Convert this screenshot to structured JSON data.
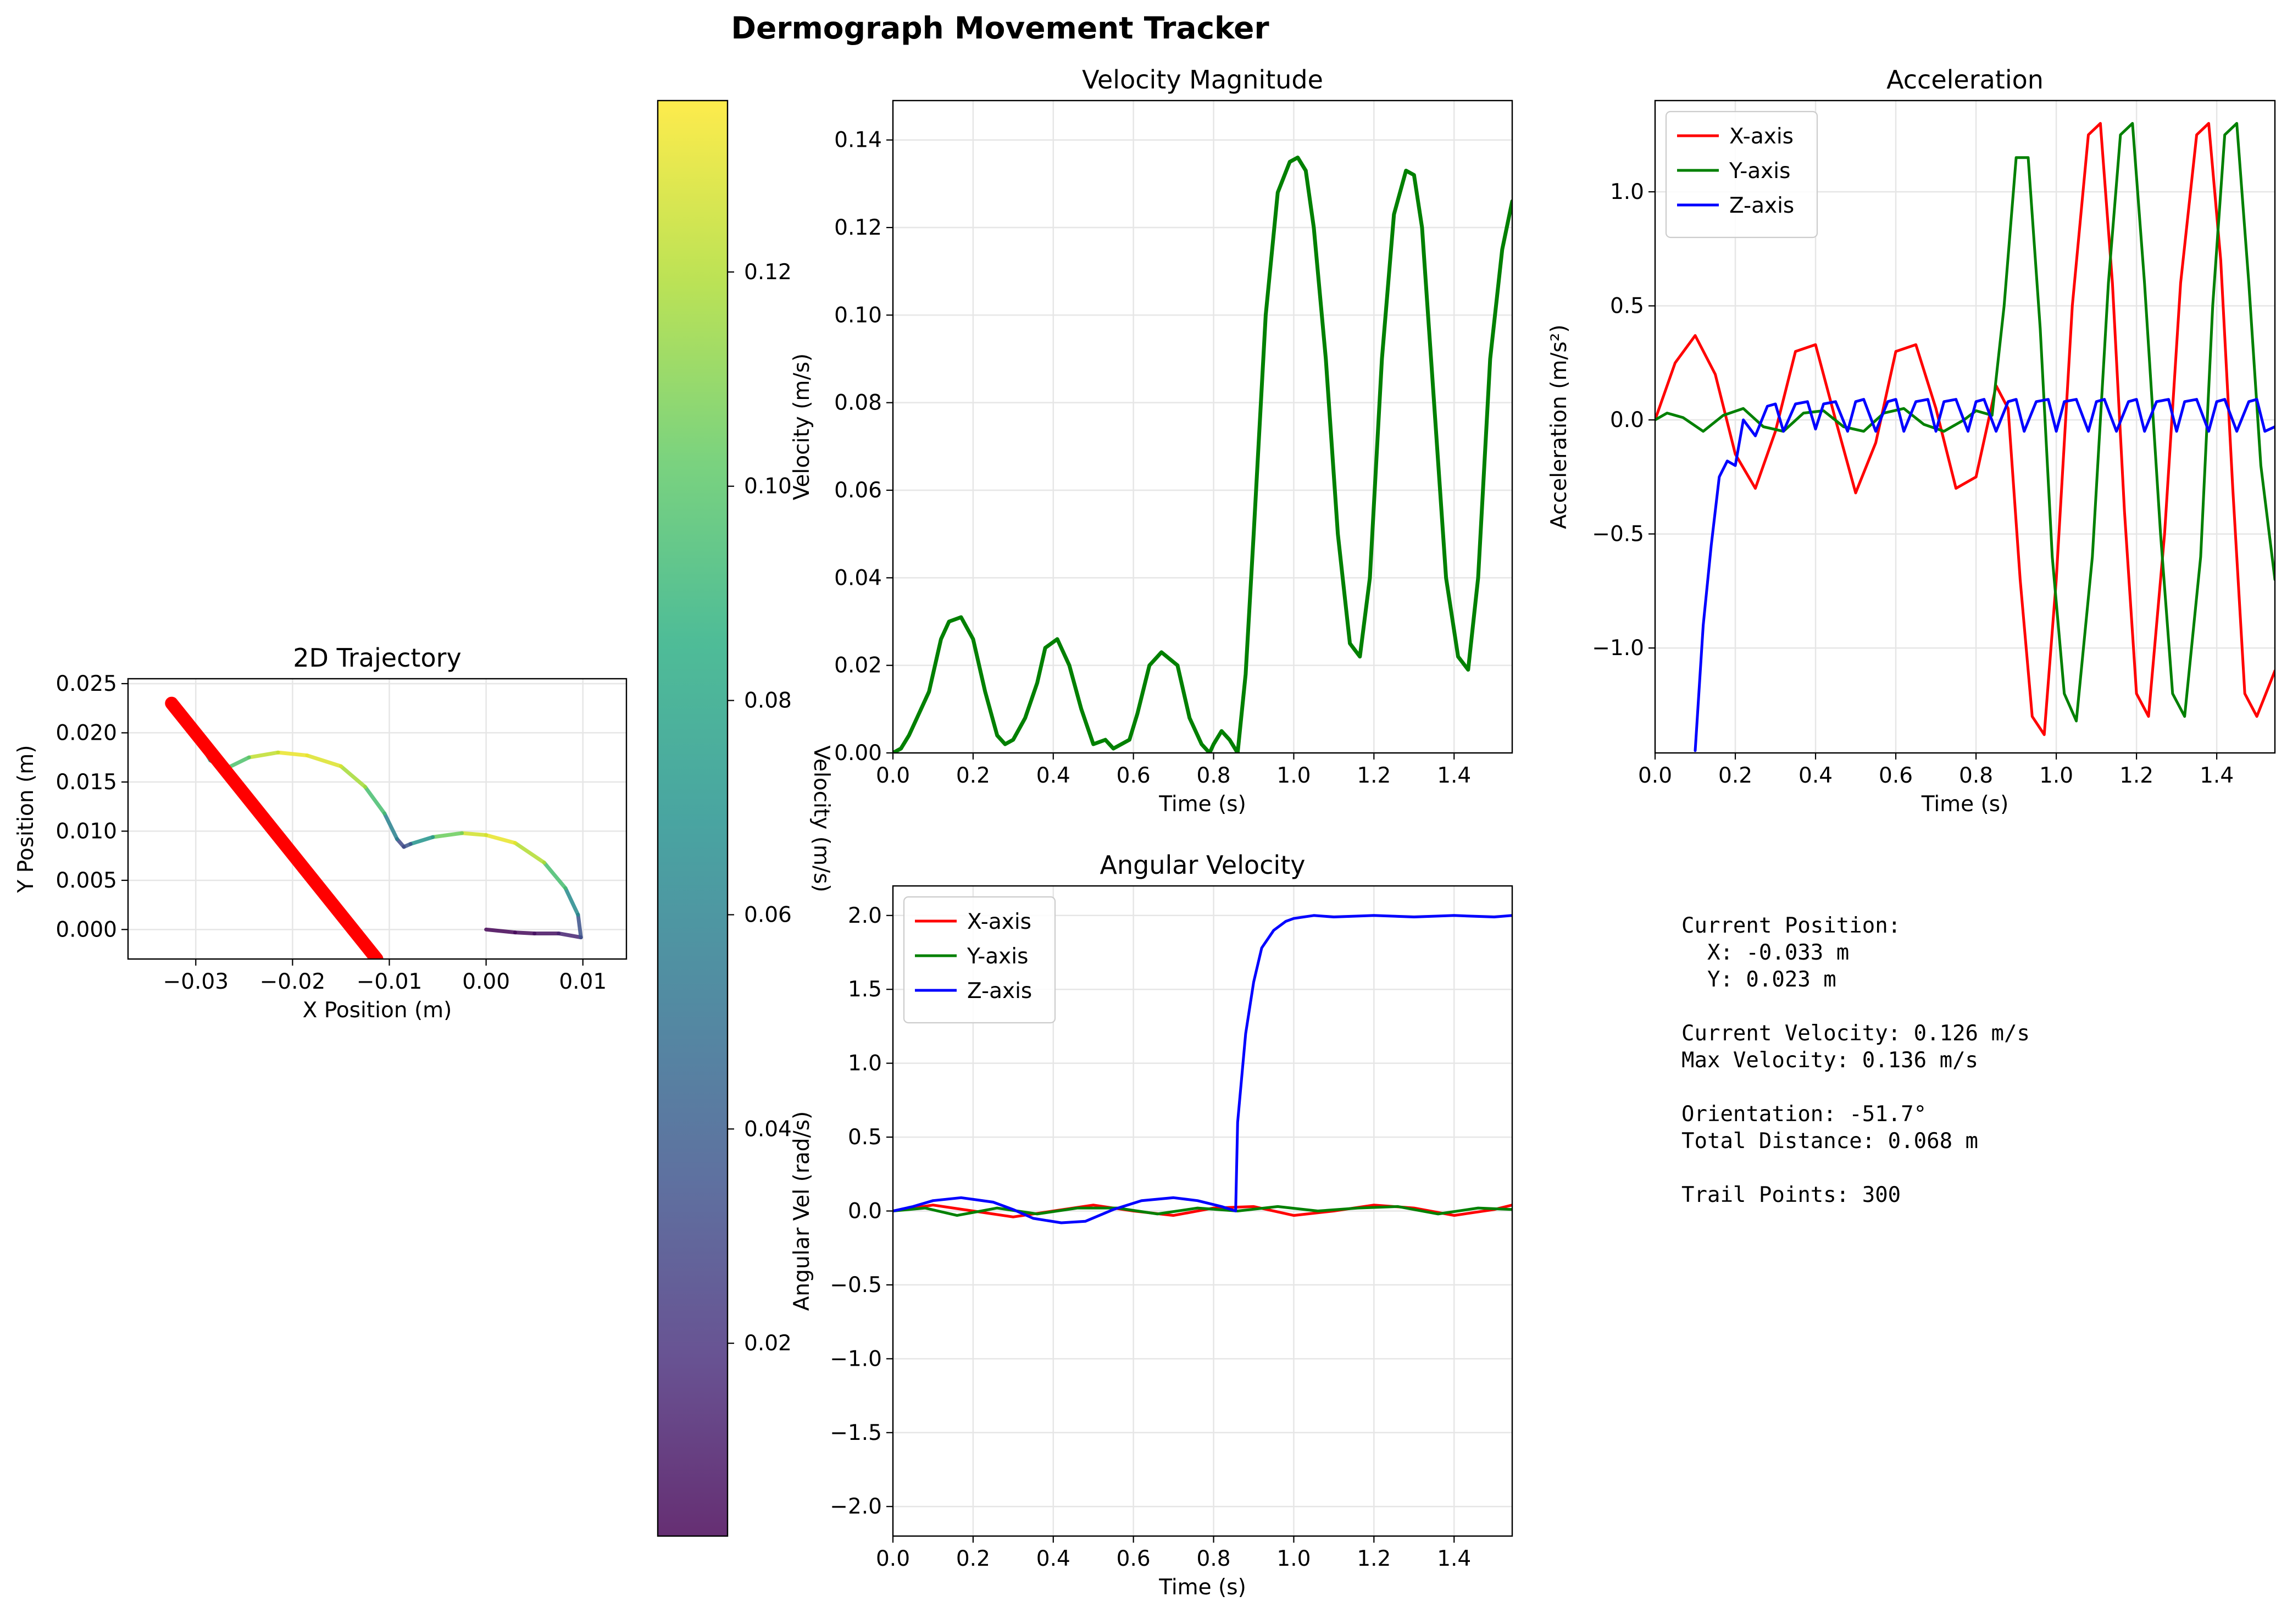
{
  "figure": {
    "title": "Dermograph Movement Tracker"
  },
  "stats": {
    "position_label": "Current Position:",
    "x_line": "  X: -0.033 m",
    "y_line": "  Y: 0.023 m",
    "current_velocity": "Current Velocity: 0.126 m/s",
    "max_velocity": "Max Velocity: 0.136 m/s",
    "orientation": "Orientation: -51.7°",
    "total_distance": "Total Distance: 0.068 m",
    "trail_points": "Trail Points: 300"
  },
  "colors": {
    "x_axis": "#ff0000",
    "y_axis": "#008000",
    "z_axis": "#0000ff",
    "velocity_line": "#008000",
    "orientation_line": "#ff0000",
    "grid": "#e6e6e6"
  },
  "chart_data": [
    {
      "id": "trajectory",
      "type": "line",
      "title": "2D Trajectory",
      "xlabel": "X Position (m)",
      "ylabel": "Y Position (m)",
      "xlim": [
        -0.037,
        0.0145
      ],
      "ylim": [
        -0.003,
        0.0255
      ],
      "xticks": [
        -0.03,
        -0.02,
        -0.01,
        0.0,
        0.01
      ],
      "xtick_labels": [
        "−0.03",
        "−0.02",
        "−0.01",
        "0.00",
        "0.01"
      ],
      "yticks": [
        0.0,
        0.005,
        0.01,
        0.015,
        0.02,
        0.025
      ],
      "ytick_labels": [
        "0.000",
        "0.005",
        "0.010",
        "0.015",
        "0.020",
        "0.025"
      ],
      "grid": true,
      "trail": {
        "color_by": "velocity",
        "x": [
          0.0,
          0.003,
          0.005,
          0.0075,
          0.0098,
          0.0095,
          0.0082,
          0.006,
          0.003,
          0.0,
          -0.0025,
          -0.0055,
          -0.0078,
          -0.0085,
          -0.0092,
          -0.0105,
          -0.0125,
          -0.015,
          -0.0185,
          -0.0215,
          -0.0245,
          -0.027,
          -0.0285,
          -0.0305,
          -0.0325
        ],
        "y": [
          0.0,
          -0.0003,
          -0.0004,
          -0.0004,
          -0.0008,
          0.0015,
          0.0042,
          0.0068,
          0.0088,
          0.0096,
          0.0098,
          0.0094,
          0.0087,
          0.0084,
          0.0092,
          0.0118,
          0.0145,
          0.0166,
          0.0177,
          0.018,
          0.0175,
          0.0163,
          0.0172,
          0.0205,
          0.023
        ],
        "velocity": [
          0.002,
          0.004,
          0.006,
          0.01,
          0.02,
          0.05,
          0.08,
          0.11,
          0.13,
          0.133,
          0.12,
          0.09,
          0.05,
          0.022,
          0.04,
          0.08,
          0.11,
          0.125,
          0.133,
          0.131,
          0.115,
          0.08,
          0.06,
          0.1,
          0.126
        ]
      },
      "orientation_line": {
        "x": [
          -0.0325,
          -0.0113
        ],
        "y": [
          0.023,
          -0.003
        ]
      },
      "colorbar": {
        "label": "Velocity (m/s)",
        "range": [
          0.002,
          0.136
        ],
        "ticks": [
          0.02,
          0.04,
          0.06,
          0.08,
          0.1,
          0.12
        ],
        "tick_labels": [
          "0.02",
          "0.04",
          "0.06",
          "0.08",
          "0.10",
          "0.12"
        ],
        "colormap": "viridis"
      }
    },
    {
      "id": "velocity",
      "type": "line",
      "title": "Velocity Magnitude",
      "xlabel": "Time (s)",
      "ylabel": "Velocity (m/s)",
      "xlim": [
        0,
        1.545
      ],
      "ylim": [
        0,
        0.149
      ],
      "xticks": [
        0,
        0.2,
        0.4,
        0.6,
        0.8,
        1.0,
        1.2,
        1.4
      ],
      "xtick_labels": [
        "0.0",
        "0.2",
        "0.4",
        "0.6",
        "0.8",
        "1.0",
        "1.2",
        "1.4"
      ],
      "yticks": [
        0,
        0.02,
        0.04,
        0.06,
        0.08,
        0.1,
        0.12,
        0.14
      ],
      "ytick_labels": [
        "0.00",
        "0.02",
        "0.04",
        "0.06",
        "0.08",
        "0.10",
        "0.12",
        "0.14"
      ],
      "grid": true,
      "x": [
        0.0,
        0.02,
        0.04,
        0.06,
        0.09,
        0.12,
        0.14,
        0.17,
        0.2,
        0.23,
        0.26,
        0.28,
        0.3,
        0.33,
        0.36,
        0.38,
        0.41,
        0.44,
        0.47,
        0.5,
        0.53,
        0.55,
        0.57,
        0.59,
        0.61,
        0.64,
        0.67,
        0.71,
        0.74,
        0.77,
        0.79,
        0.8,
        0.82,
        0.84,
        0.86,
        0.88,
        0.9,
        0.93,
        0.96,
        0.99,
        1.01,
        1.03,
        1.05,
        1.08,
        1.11,
        1.14,
        1.165,
        1.19,
        1.22,
        1.25,
        1.28,
        1.3,
        1.32,
        1.35,
        1.38,
        1.41,
        1.435,
        1.46,
        1.49,
        1.52,
        1.545
      ],
      "y": [
        0.0,
        0.001,
        0.004,
        0.008,
        0.014,
        0.026,
        0.03,
        0.031,
        0.026,
        0.014,
        0.004,
        0.002,
        0.003,
        0.008,
        0.016,
        0.024,
        0.026,
        0.02,
        0.01,
        0.002,
        0.003,
        0.001,
        0.002,
        0.003,
        0.009,
        0.02,
        0.023,
        0.02,
        0.008,
        0.002,
        0.0,
        0.002,
        0.005,
        0.003,
        0.0,
        0.018,
        0.05,
        0.1,
        0.128,
        0.135,
        0.136,
        0.133,
        0.12,
        0.09,
        0.05,
        0.025,
        0.022,
        0.04,
        0.09,
        0.123,
        0.133,
        0.132,
        0.12,
        0.08,
        0.04,
        0.022,
        0.019,
        0.04,
        0.09,
        0.115,
        0.126
      ]
    },
    {
      "id": "acceleration",
      "type": "line",
      "title": "Acceleration",
      "xlabel": "Time (s)",
      "ylabel": "Acceleration (m/s²)",
      "xlim": [
        0,
        1.545
      ],
      "ylim": [
        -1.46,
        1.4
      ],
      "xticks": [
        0,
        0.2,
        0.4,
        0.6,
        0.8,
        1.0,
        1.2,
        1.4
      ],
      "xtick_labels": [
        "0.0",
        "0.2",
        "0.4",
        "0.6",
        "0.8",
        "1.0",
        "1.2",
        "1.4"
      ],
      "yticks": [
        -1.0,
        -0.5,
        0.0,
        0.5,
        1.0
      ],
      "ytick_labels": [
        "−1.0",
        "−0.5",
        "0.0",
        "0.5",
        "1.0"
      ],
      "grid": true,
      "legend": "top-left",
      "series": [
        {
          "name": "X-axis",
          "color": "#ff0000",
          "x": [
            0.0,
            0.05,
            0.1,
            0.15,
            0.2,
            0.25,
            0.3,
            0.35,
            0.4,
            0.45,
            0.5,
            0.55,
            0.6,
            0.65,
            0.7,
            0.75,
            0.8,
            0.85,
            0.88,
            0.91,
            0.94,
            0.97,
            1.0,
            1.04,
            1.08,
            1.11,
            1.14,
            1.17,
            1.2,
            1.23,
            1.27,
            1.31,
            1.35,
            1.38,
            1.41,
            1.44,
            1.47,
            1.5,
            1.545
          ],
          "y": [
            0.0,
            0.25,
            0.37,
            0.2,
            -0.15,
            -0.3,
            -0.05,
            0.3,
            0.33,
            0.0,
            -0.32,
            -0.1,
            0.3,
            0.33,
            0.05,
            -0.3,
            -0.25,
            0.15,
            0.05,
            -0.7,
            -1.3,
            -1.38,
            -0.7,
            0.5,
            1.25,
            1.3,
            0.6,
            -0.4,
            -1.2,
            -1.3,
            -0.5,
            0.6,
            1.25,
            1.3,
            0.7,
            -0.3,
            -1.2,
            -1.3,
            -1.1
          ]
        },
        {
          "name": "Y-axis",
          "color": "#008000",
          "x": [
            0.0,
            0.03,
            0.07,
            0.12,
            0.17,
            0.22,
            0.27,
            0.32,
            0.37,
            0.42,
            0.47,
            0.52,
            0.57,
            0.62,
            0.67,
            0.72,
            0.77,
            0.8,
            0.84,
            0.87,
            0.9,
            0.93,
            0.96,
            0.99,
            1.02,
            1.05,
            1.09,
            1.13,
            1.16,
            1.19,
            1.22,
            1.26,
            1.29,
            1.32,
            1.36,
            1.39,
            1.42,
            1.45,
            1.48,
            1.51,
            1.545
          ],
          "y": [
            0.0,
            0.03,
            0.01,
            -0.05,
            0.02,
            0.05,
            -0.03,
            -0.05,
            0.03,
            0.04,
            -0.03,
            -0.05,
            0.03,
            0.05,
            -0.02,
            -0.05,
            0.0,
            0.04,
            0.02,
            0.5,
            1.15,
            1.15,
            0.4,
            -0.6,
            -1.2,
            -1.32,
            -0.6,
            0.6,
            1.25,
            1.3,
            0.6,
            -0.5,
            -1.2,
            -1.3,
            -0.6,
            0.5,
            1.25,
            1.3,
            0.6,
            -0.2,
            -0.7
          ]
        },
        {
          "name": "Z-axis",
          "color": "#0000ff",
          "x": [
            0.1,
            0.12,
            0.14,
            0.16,
            0.18,
            0.2,
            0.22,
            0.25,
            0.28,
            0.3,
            0.32,
            0.35,
            0.38,
            0.4,
            0.42,
            0.45,
            0.48,
            0.5,
            0.52,
            0.55,
            0.58,
            0.6,
            0.62,
            0.65,
            0.68,
            0.7,
            0.72,
            0.75,
            0.78,
            0.8,
            0.82,
            0.85,
            0.88,
            0.9,
            0.92,
            0.95,
            0.98,
            1.0,
            1.02,
            1.05,
            1.08,
            1.1,
            1.12,
            1.15,
            1.18,
            1.2,
            1.22,
            1.25,
            1.28,
            1.3,
            1.32,
            1.35,
            1.38,
            1.4,
            1.42,
            1.45,
            1.48,
            1.5,
            1.52,
            1.545
          ],
          "y": [
            -1.45,
            -0.9,
            -0.55,
            -0.25,
            -0.18,
            -0.2,
            0.0,
            -0.07,
            0.06,
            0.07,
            -0.05,
            0.07,
            0.08,
            -0.04,
            0.07,
            0.08,
            -0.05,
            0.08,
            0.09,
            -0.05,
            0.08,
            0.09,
            -0.05,
            0.08,
            0.09,
            -0.05,
            0.08,
            0.09,
            -0.05,
            0.08,
            0.09,
            -0.05,
            0.08,
            0.09,
            -0.05,
            0.08,
            0.09,
            -0.05,
            0.08,
            0.09,
            -0.05,
            0.08,
            0.09,
            -0.05,
            0.08,
            0.09,
            -0.05,
            0.08,
            0.09,
            -0.05,
            0.08,
            0.09,
            -0.05,
            0.08,
            0.09,
            -0.05,
            0.08,
            0.09,
            -0.05,
            -0.03
          ]
        }
      ]
    },
    {
      "id": "angular",
      "type": "line",
      "title": "Angular Velocity",
      "xlabel": "Time (s)",
      "ylabel": "Angular Vel (rad/s)",
      "xlim": [
        0,
        1.545
      ],
      "ylim": [
        -2.2,
        2.2
      ],
      "xticks": [
        0,
        0.2,
        0.4,
        0.6,
        0.8,
        1.0,
        1.2,
        1.4
      ],
      "xtick_labels": [
        "0.0",
        "0.2",
        "0.4",
        "0.6",
        "0.8",
        "1.0",
        "1.2",
        "1.4"
      ],
      "yticks": [
        -2.0,
        -1.5,
        -1.0,
        -0.5,
        0.0,
        0.5,
        1.0,
        1.5,
        2.0
      ],
      "ytick_labels": [
        "−2.0",
        "−1.5",
        "−1.0",
        "−0.5",
        "0.0",
        "0.5",
        "1.0",
        "1.5",
        "2.0"
      ],
      "grid": true,
      "legend": "top-left",
      "series": [
        {
          "name": "X-axis",
          "color": "#ff0000",
          "x": [
            0.0,
            0.1,
            0.2,
            0.3,
            0.4,
            0.5,
            0.6,
            0.7,
            0.8,
            0.9,
            1.0,
            1.1,
            1.2,
            1.3,
            1.4,
            1.5,
            1.545
          ],
          "y": [
            0.0,
            0.04,
            0.0,
            -0.04,
            0.0,
            0.04,
            0.0,
            -0.03,
            0.02,
            0.03,
            -0.03,
            0.0,
            0.04,
            0.02,
            -0.03,
            0.01,
            0.04
          ]
        },
        {
          "name": "Y-axis",
          "color": "#008000",
          "x": [
            0.0,
            0.08,
            0.16,
            0.26,
            0.36,
            0.46,
            0.56,
            0.66,
            0.76,
            0.86,
            0.96,
            1.06,
            1.16,
            1.26,
            1.36,
            1.46,
            1.545
          ],
          "y": [
            0.0,
            0.02,
            -0.03,
            0.02,
            -0.02,
            0.02,
            0.02,
            -0.02,
            0.02,
            0.0,
            0.03,
            0.0,
            0.02,
            0.03,
            -0.02,
            0.02,
            0.01
          ]
        },
        {
          "name": "Z-axis",
          "color": "#0000ff",
          "x": [
            0.0,
            0.05,
            0.1,
            0.17,
            0.25,
            0.3,
            0.35,
            0.42,
            0.48,
            0.55,
            0.62,
            0.7,
            0.76,
            0.82,
            0.855,
            0.86,
            0.88,
            0.9,
            0.92,
            0.95,
            0.98,
            1.0,
            1.05,
            1.1,
            1.2,
            1.3,
            1.4,
            1.5,
            1.545
          ],
          "y": [
            0.0,
            0.03,
            0.07,
            0.09,
            0.06,
            0.01,
            -0.05,
            -0.08,
            -0.07,
            0.01,
            0.07,
            0.09,
            0.07,
            0.03,
            0.0,
            0.6,
            1.2,
            1.55,
            1.78,
            1.9,
            1.96,
            1.98,
            2.0,
            1.99,
            2.0,
            1.99,
            2.0,
            1.99,
            2.0
          ]
        }
      ]
    }
  ]
}
